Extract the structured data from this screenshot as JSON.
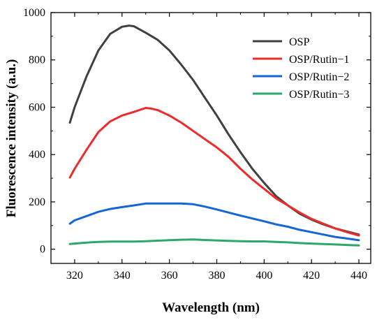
{
  "chart_data": {
    "type": "line",
    "title": "",
    "xlabel": "Wavelength (nm)",
    "ylabel": "Fluorescence intensity (a.u.)",
    "xlim": [
      310,
      445
    ],
    "ylim": [
      -60,
      1000
    ],
    "xticks": [
      320,
      340,
      360,
      380,
      400,
      420,
      440
    ],
    "yticks": [
      0,
      200,
      400,
      600,
      800,
      1000
    ],
    "grid": false,
    "legend_position": "top-right",
    "series": [
      {
        "name": "OSP",
        "color": "#404040",
        "x": [
          318,
          320,
          325,
          330,
          335,
          340,
          343,
          345,
          350,
          355,
          360,
          365,
          370,
          375,
          380,
          385,
          390,
          395,
          400,
          405,
          410,
          415,
          420,
          425,
          430,
          435,
          440
        ],
        "y": [
          535,
          600,
          730,
          840,
          910,
          940,
          945,
          942,
          915,
          885,
          840,
          780,
          715,
          640,
          565,
          485,
          410,
          340,
          280,
          225,
          185,
          150,
          125,
          105,
          88,
          75,
          62
        ]
      },
      {
        "name": "OSP/Rutin−1",
        "color": "#ee2b2b",
        "x": [
          318,
          320,
          325,
          330,
          335,
          340,
          345,
          350,
          352,
          355,
          360,
          365,
          370,
          375,
          380,
          385,
          390,
          395,
          400,
          405,
          410,
          415,
          420,
          425,
          430,
          435,
          440
        ],
        "y": [
          303,
          340,
          420,
          495,
          540,
          565,
          580,
          597,
          595,
          588,
          565,
          535,
          500,
          465,
          430,
          390,
          340,
          295,
          255,
          215,
          185,
          155,
          128,
          108,
          88,
          72,
          58
        ]
      },
      {
        "name": "OSP/Rutin−2",
        "color": "#1565d8",
        "x": [
          318,
          320,
          325,
          330,
          335,
          340,
          345,
          350,
          355,
          360,
          365,
          370,
          375,
          380,
          385,
          390,
          395,
          400,
          405,
          410,
          415,
          420,
          425,
          430,
          435,
          440
        ],
        "y": [
          108,
          122,
          140,
          158,
          170,
          178,
          185,
          193,
          193,
          193,
          193,
          190,
          180,
          168,
          155,
          142,
          130,
          118,
          105,
          95,
          82,
          72,
          62,
          52,
          45,
          38
        ]
      },
      {
        "name": "OSP/Rutin−3",
        "color": "#2ea86a",
        "x": [
          318,
          320,
          325,
          330,
          335,
          340,
          345,
          350,
          355,
          360,
          365,
          370,
          375,
          380,
          385,
          390,
          395,
          400,
          405,
          410,
          415,
          420,
          425,
          430,
          435,
          440
        ],
        "y": [
          22,
          24,
          28,
          31,
          32,
          32,
          32,
          34,
          36,
          38,
          40,
          41,
          39,
          37,
          35,
          34,
          33,
          33,
          31,
          29,
          26,
          24,
          22,
          20,
          18,
          16
        ]
      }
    ]
  }
}
